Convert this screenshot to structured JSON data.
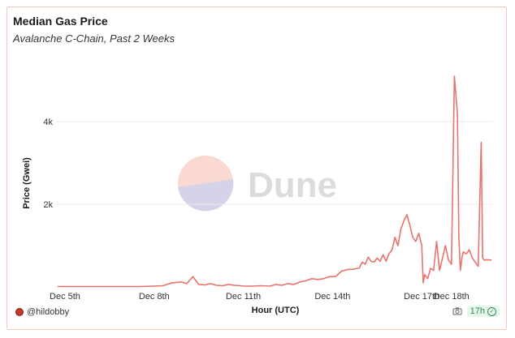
{
  "header": {
    "title": "Median Gas Price",
    "subtitle": "Avalanche C-Chain, Past 2 Weeks"
  },
  "watermark": {
    "text": "Dune"
  },
  "footer": {
    "author": "@hildobby",
    "age": "17h"
  },
  "colors": {
    "line": "#e8736a",
    "grid": "#ececec",
    "axis_text": "#333333"
  },
  "chart_data": {
    "type": "line",
    "title": "Median Gas Price",
    "subtitle": "Avalanche C-Chain, Past 2 Weeks",
    "xlabel": "Hour (UTC)",
    "ylabel": "Price (Gwei)",
    "xlim": [
      4.7,
      19.4
    ],
    "ylim": [
      0,
      5200
    ],
    "x_ticks": [
      5,
      8,
      11,
      14,
      17,
      18
    ],
    "x_tick_labels": [
      "Dec 5th",
      "Dec 8th",
      "Dec 11th",
      "Dec 14th",
      "Dec 17th",
      "Dec 18th"
    ],
    "y_ticks": [
      2000,
      4000
    ],
    "y_tick_labels": [
      "2k",
      "4k"
    ],
    "grid": true,
    "series": [
      {
        "x": [
          4.75,
          5.5,
          6.5,
          7.5,
          8.0,
          8.3,
          8.6,
          8.9,
          9.1,
          9.3,
          9.5,
          9.7,
          9.9,
          10.1,
          10.3,
          10.5,
          10.7,
          10.9,
          11.0,
          11.3,
          11.6,
          11.9,
          12.1,
          12.3,
          12.5,
          12.7,
          12.9,
          13.1,
          13.3,
          13.5,
          13.7,
          13.9,
          14.1,
          14.3,
          14.5,
          14.7,
          14.9,
          15.0,
          15.1,
          15.2,
          15.3,
          15.4,
          15.5,
          15.6,
          15.7,
          15.8,
          15.9,
          16.0,
          16.1,
          16.2,
          16.3,
          16.4,
          16.5,
          16.6,
          16.7,
          16.8,
          16.9,
          17.0,
          17.05,
          17.1,
          17.2,
          17.3,
          17.4,
          17.5,
          17.6,
          17.7,
          17.8,
          17.9,
          18.0,
          18.1,
          18.2,
          18.25,
          18.3,
          18.35,
          18.4,
          18.5,
          18.6,
          18.7,
          18.8,
          18.9,
          19.0,
          19.05,
          19.1,
          19.2,
          19.35
        ],
        "y": [
          10,
          10,
          10,
          10,
          20,
          30,
          100,
          120,
          80,
          250,
          60,
          50,
          80,
          40,
          30,
          60,
          40,
          30,
          20,
          20,
          30,
          20,
          60,
          40,
          80,
          60,
          120,
          150,
          200,
          180,
          200,
          250,
          250,
          380,
          420,
          430,
          460,
          600,
          550,
          720,
          620,
          600,
          700,
          620,
          780,
          620,
          800,
          900,
          1200,
          1000,
          1400,
          1600,
          1750,
          1500,
          1200,
          1100,
          1300,
          1000,
          100,
          300,
          200,
          450,
          400,
          1100,
          400,
          700,
          1000,
          650,
          550,
          5100,
          4200,
          1200,
          400,
          700,
          850,
          800,
          900,
          700,
          600,
          500,
          3500,
          700,
          650,
          660,
          650
        ]
      }
    ]
  }
}
